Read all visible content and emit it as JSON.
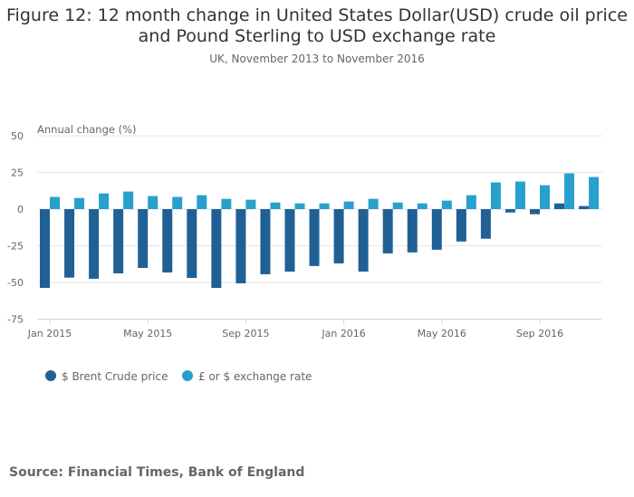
{
  "chart_data": {
    "type": "bar",
    "title": "Figure 12: 12 month change in United States Dollar(USD) crude oil price and Pound Sterling to USD exchange rate",
    "title_lines": [
      "Figure 12: 12 month change in United States Dollar(USD) crude oil price",
      "and Pound Sterling to USD exchange rate"
    ],
    "subtitle": "UK, November 2013 to November 2016",
    "ylabel": "Annual change (%)",
    "xlabel": "",
    "ylim": [
      -75,
      50
    ],
    "yticks": [
      50,
      25,
      0,
      -25,
      -50,
      -75
    ],
    "grid": true,
    "legend_position": "bottom-left",
    "categories": [
      "Jan 2015",
      "Feb 2015",
      "Mar 2015",
      "Apr 2015",
      "May 2015",
      "Jun 2015",
      "Jul 2015",
      "Aug 2015",
      "Sep 2015",
      "Oct 2015",
      "Nov 2015",
      "Dec 2015",
      "Jan 2016",
      "Feb 2016",
      "Mar 2016",
      "Apr 2016",
      "May 2016",
      "Jun 2016",
      "Jul 2016",
      "Aug 2016",
      "Sep 2016",
      "Oct 2016",
      "Nov 2016"
    ],
    "xtick_labels": [
      "Jan 2015",
      "May 2015",
      "Sep 2015",
      "Jan 2016",
      "May 2016",
      "Sep 2016"
    ],
    "series": [
      {
        "name": "$ Brent Crude price",
        "color": "#206095",
        "values": [
          -53.7,
          -46.7,
          -47.5,
          -43.8,
          -40.1,
          -43.2,
          -46.9,
          -53.7,
          -50.6,
          -44.4,
          -42.6,
          -38.8,
          -37.0,
          -42.6,
          -30.2,
          -29.5,
          -27.7,
          -22.1,
          -20.2,
          -2.3,
          -3.5,
          3.9,
          2.1
        ]
      },
      {
        "name": "£ or $ exchange rate",
        "color": "#27a0cc",
        "values": [
          8.3,
          7.6,
          10.7,
          12.0,
          8.9,
          8.3,
          9.5,
          7.0,
          6.4,
          4.5,
          3.9,
          3.9,
          5.2,
          7.0,
          4.5,
          3.9,
          5.8,
          9.5,
          18.2,
          18.8,
          16.3,
          24.4,
          21.9
        ]
      }
    ]
  },
  "source": "Source: Financial Times, Bank of England"
}
